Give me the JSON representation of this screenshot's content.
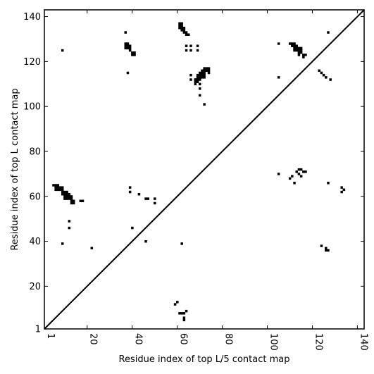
{
  "chart_data": {
    "type": "heatmap",
    "xlabel": "Residue index of top L/5 contact map",
    "ylabel": "Residue index of top L contact map",
    "xlim": [
      1,
      143
    ],
    "ylim": [
      1,
      143
    ],
    "x_ticks": [
      1,
      20,
      40,
      60,
      80,
      100,
      120,
      140
    ],
    "y_ticks": [
      1,
      20,
      40,
      60,
      80,
      100,
      120,
      140
    ],
    "diagonal_line": true,
    "cell_color": "#000000",
    "background_color": "#ffffff",
    "series": [
      {
        "region": "upper-left",
        "cells": [
          [
            37,
            133
          ],
          [
            9,
            125
          ],
          [
            38,
            115
          ],
          [
            37,
            128
          ],
          [
            38,
            128
          ],
          [
            37,
            127
          ],
          [
            38,
            127
          ],
          [
            39,
            127
          ],
          [
            37,
            126
          ],
          [
            38,
            126
          ],
          [
            39,
            126
          ],
          [
            39,
            125
          ],
          [
            40,
            124
          ],
          [
            41,
            124
          ],
          [
            40,
            123
          ],
          [
            41,
            123
          ],
          [
            61,
            137
          ],
          [
            62,
            137
          ],
          [
            61,
            136
          ],
          [
            62,
            136
          ],
          [
            61,
            135
          ],
          [
            62,
            135
          ],
          [
            63,
            135
          ],
          [
            62,
            134
          ],
          [
            63,
            134
          ],
          [
            63,
            133
          ],
          [
            64,
            133
          ],
          [
            64,
            132
          ],
          [
            65,
            132
          ],
          [
            64,
            127
          ],
          [
            66,
            127
          ],
          [
            69,
            127
          ],
          [
            64,
            125
          ],
          [
            66,
            125
          ],
          [
            69,
            125
          ],
          [
            66,
            114
          ],
          [
            70,
            114
          ],
          [
            66,
            112
          ],
          [
            68,
            112
          ],
          [
            72,
            117
          ],
          [
            73,
            117
          ],
          [
            74,
            117
          ],
          [
            71,
            116
          ],
          [
            72,
            116
          ],
          [
            73,
            116
          ],
          [
            74,
            116
          ],
          [
            70,
            115
          ],
          [
            71,
            115
          ],
          [
            72,
            115
          ],
          [
            74,
            115
          ],
          [
            69,
            114
          ],
          [
            71,
            114
          ],
          [
            72,
            114
          ],
          [
            69,
            113
          ],
          [
            70,
            113
          ],
          [
            71,
            113
          ],
          [
            72,
            113
          ],
          [
            68,
            112
          ],
          [
            69,
            112
          ],
          [
            70,
            112
          ],
          [
            68,
            111
          ],
          [
            69,
            111
          ],
          [
            68,
            110
          ],
          [
            70,
            110
          ],
          [
            70,
            108
          ],
          [
            70,
            105
          ],
          [
            72,
            101
          ]
        ]
      },
      {
        "region": "upper-right",
        "cells": [
          [
            127,
            133
          ],
          [
            105,
            128
          ],
          [
            110,
            128
          ],
          [
            111,
            128
          ],
          [
            112,
            128
          ],
          [
            111,
            127
          ],
          [
            112,
            127
          ],
          [
            113,
            127
          ],
          [
            112,
            126
          ],
          [
            113,
            126
          ],
          [
            114,
            126
          ],
          [
            115,
            126
          ],
          [
            112,
            125
          ],
          [
            113,
            125
          ],
          [
            114,
            125
          ],
          [
            115,
            125
          ],
          [
            114,
            124
          ],
          [
            115,
            124
          ],
          [
            114,
            123
          ],
          [
            116,
            123
          ],
          [
            117,
            123
          ],
          [
            116,
            122
          ],
          [
            105,
            113
          ],
          [
            123,
            116
          ],
          [
            124,
            115
          ],
          [
            125,
            114
          ],
          [
            126,
            113
          ],
          [
            128,
            112
          ]
        ]
      },
      {
        "region": "lower-left",
        "cells": [
          [
            5,
            65
          ],
          [
            6,
            65
          ],
          [
            7,
            65
          ],
          [
            6,
            64
          ],
          [
            7,
            64
          ],
          [
            8,
            64
          ],
          [
            9,
            64
          ],
          [
            6,
            63
          ],
          [
            7,
            63
          ],
          [
            8,
            63
          ],
          [
            9,
            63
          ],
          [
            9,
            62
          ],
          [
            10,
            62
          ],
          [
            11,
            62
          ],
          [
            9,
            61
          ],
          [
            10,
            61
          ],
          [
            11,
            61
          ],
          [
            12,
            61
          ],
          [
            10,
            60
          ],
          [
            11,
            60
          ],
          [
            12,
            60
          ],
          [
            13,
            60
          ],
          [
            10,
            59
          ],
          [
            11,
            59
          ],
          [
            12,
            59
          ],
          [
            13,
            59
          ],
          [
            13,
            58
          ],
          [
            14,
            58
          ],
          [
            17,
            58
          ],
          [
            18,
            58
          ],
          [
            13,
            57
          ],
          [
            14,
            57
          ],
          [
            39,
            64
          ],
          [
            39,
            62
          ],
          [
            43,
            61
          ],
          [
            46,
            59
          ],
          [
            47,
            59
          ],
          [
            50,
            59
          ],
          [
            50,
            57
          ],
          [
            12,
            49
          ],
          [
            12,
            46
          ],
          [
            40,
            46
          ],
          [
            9,
            39
          ],
          [
            46,
            40
          ],
          [
            22,
            37
          ]
        ]
      },
      {
        "region": "lower-middle",
        "cells": [
          [
            60,
            13
          ],
          [
            59,
            12
          ],
          [
            62,
            39
          ],
          [
            61,
            8
          ],
          [
            64,
            9
          ],
          [
            63,
            8
          ],
          [
            62,
            8
          ],
          [
            63,
            6
          ],
          [
            63,
            5
          ]
        ]
      },
      {
        "region": "lower-right",
        "cells": [
          [
            105,
            70
          ],
          [
            113,
            71
          ],
          [
            114,
            72
          ],
          [
            115,
            72
          ],
          [
            116,
            71
          ],
          [
            117,
            71
          ],
          [
            114,
            70
          ],
          [
            111,
            69
          ],
          [
            115,
            69
          ],
          [
            110,
            68
          ],
          [
            112,
            66
          ],
          [
            127,
            66
          ],
          [
            133,
            64
          ],
          [
            134,
            63
          ],
          [
            133,
            62
          ],
          [
            124,
            38
          ],
          [
            126,
            37
          ],
          [
            126,
            36
          ],
          [
            127,
            36
          ]
        ]
      }
    ]
  }
}
